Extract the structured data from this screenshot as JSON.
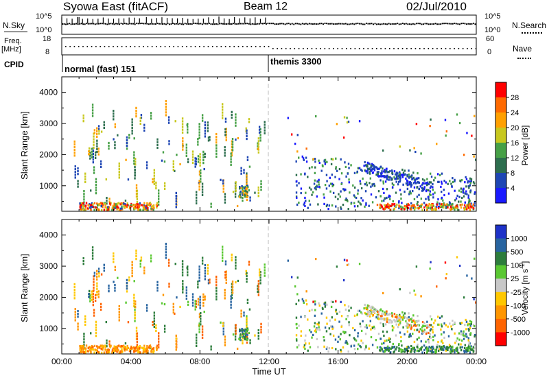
{
  "header": {
    "station": "Syowa East (fitACF)",
    "beam": "Beam 12",
    "date": "02/Jul/2010"
  },
  "ctrl_panels": {
    "nsky_label": "N.Sky",
    "nsky_ticks": [
      "10^5",
      "10^0"
    ],
    "nsearch_label": "N.Search",
    "nsearch_ticks": [
      "10^5",
      "10^0"
    ],
    "freq_label": "Freq.",
    "freq_unit": "[MHz]",
    "freq_ticks": [
      "18",
      "8"
    ],
    "nave_label": "Nave",
    "nave_ticks": [
      "60",
      "0"
    ],
    "cpid_label": "CPID",
    "mode1": "normal (fast) 151",
    "mode2": "themis 3300"
  },
  "x_axis": {
    "title": "Time UT",
    "ticks": [
      "00:00",
      "04:00",
      "08:00",
      "12:00",
      "16:00",
      "20:00",
      "00:00"
    ]
  },
  "colors": {
    "power_scale": [
      "#1a1aff",
      "#1e46b4",
      "#2d6e4e",
      "#46a046",
      "#c8c81e",
      "#ffa000",
      "#ff6a00",
      "#ff0000"
    ],
    "velocity_scale": [
      "#1e32c8",
      "#2864a0",
      "#2d7d3c",
      "#5ac832",
      "#c8c8c8",
      "#ffc800",
      "#ff9600",
      "#ff6400",
      "#ff0000"
    ]
  },
  "chart_data": [
    {
      "type": "heatmap",
      "title": "",
      "xlabel": "Time UT",
      "ylabel": "Slant Range [km]",
      "xlim": [
        0,
        24
      ],
      "ylim": [
        180,
        4500
      ],
      "y_ticks": [
        "1000",
        "2000",
        "3000",
        "4000"
      ],
      "colorbar": {
        "label": "Power [dB]",
        "ticks": [
          "4",
          "8",
          "12",
          "16",
          "20",
          "24",
          "28"
        ],
        "range": [
          0,
          32
        ]
      },
      "description_regions": [
        {
          "x": [
            0,
            12
          ],
          "y": [
            200,
            3400
          ],
          "value": "sparse mixed power 4-28 dB"
        },
        {
          "x": [
            1.5,
            5.5
          ],
          "y": [
            200,
            400
          ],
          "value": "strong 20-28 dB near-range"
        },
        {
          "x": [
            13.5,
            24
          ],
          "y": [
            200,
            2000
          ],
          "value": "6-12 dB scatter, strong near 20:00"
        }
      ]
    },
    {
      "type": "heatmap",
      "title": "",
      "xlabel": "Time UT",
      "ylabel": "Slant Range [km]",
      "xlim": [
        0,
        24
      ],
      "ylim": [
        180,
        4500
      ],
      "y_ticks": [
        "1000",
        "2000",
        "3000",
        "4000"
      ],
      "colorbar": {
        "label": "Velocity [m s^-1]",
        "ticks": [
          "1000",
          "500",
          "100",
          "25",
          "-25",
          "-100",
          "-500",
          "-1000"
        ],
        "range": [
          -1250,
          1250
        ]
      },
      "description_regions": [
        {
          "x": [
            1,
            6
          ],
          "y": [
            200,
            450
          ],
          "value": "-100 to -500 m/s"
        },
        {
          "x": [
            13.5,
            24
          ],
          "y": [
            200,
            1700
          ],
          "value": "25 to 500 m/s"
        }
      ]
    }
  ]
}
